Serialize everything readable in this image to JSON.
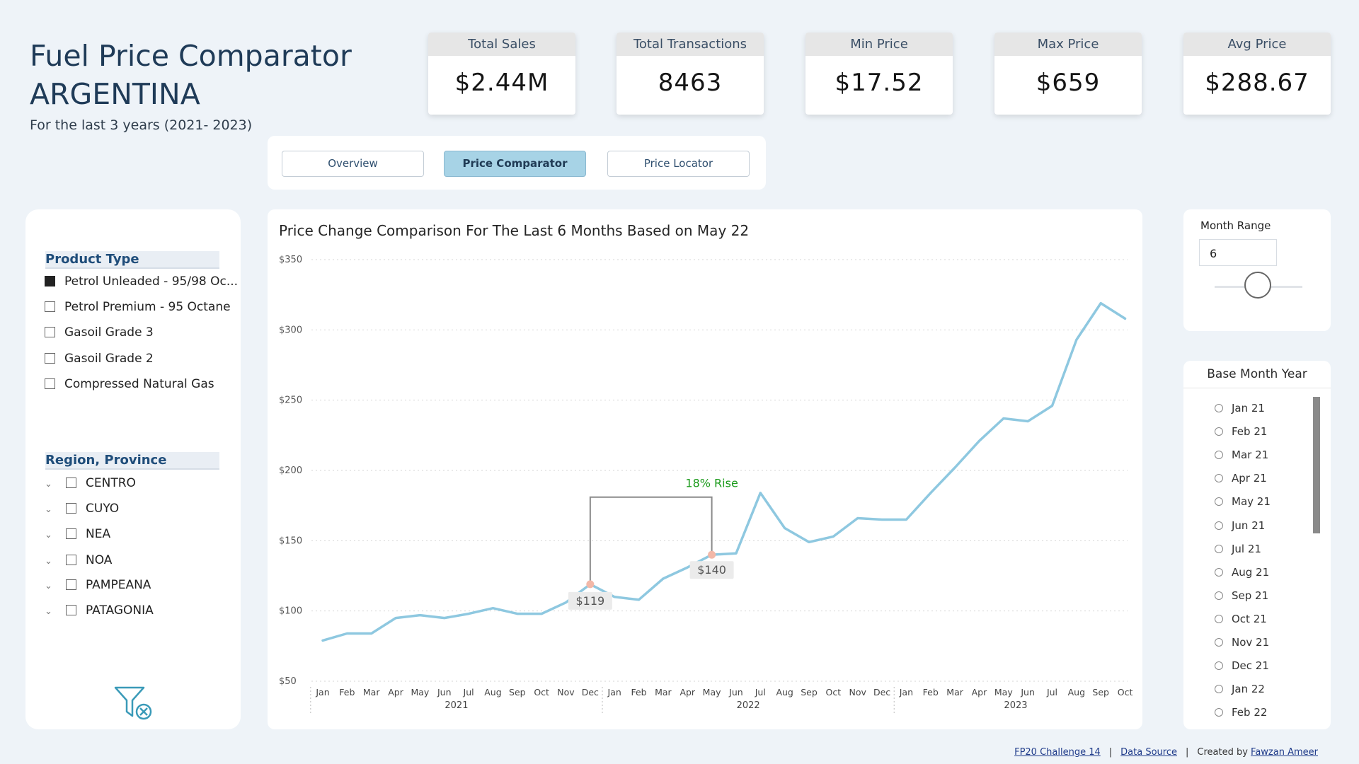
{
  "header": {
    "title_line1": "Fuel Price Comparator",
    "title_line2": "ARGENTINA",
    "subtitle": "For the last 3 years (2021- 2023)"
  },
  "kpis": [
    {
      "label": "Total Sales",
      "value": "$2.44M"
    },
    {
      "label": "Total Transactions",
      "value": "8463"
    },
    {
      "label": "Min Price",
      "value": "$17.52"
    },
    {
      "label": "Max Price",
      "value": "$659"
    },
    {
      "label": "Avg Price",
      "value": "$288.67"
    }
  ],
  "nav": {
    "tabs": [
      {
        "label": "Overview",
        "active": false
      },
      {
        "label": "Price Comparator",
        "active": true
      },
      {
        "label": "Price Locator",
        "active": false
      }
    ]
  },
  "filters": {
    "product_type": {
      "title": "Product Type",
      "items": [
        {
          "label": "Petrol Unleaded - 95/98 Oc...",
          "checked": true
        },
        {
          "label": "Petrol Premium - 95 Octane",
          "checked": false
        },
        {
          "label": "Gasoil Grade 3",
          "checked": false
        },
        {
          "label": "Gasoil Grade 2",
          "checked": false
        },
        {
          "label": "Compressed Natural Gas",
          "checked": false
        }
      ]
    },
    "region": {
      "title": "Region, Province",
      "items": [
        "CENTRO",
        "CUYO",
        "NEA",
        "NOA",
        "PAMPEANA",
        "PATAGONIA"
      ]
    },
    "clear_icon": "clear-filter-icon"
  },
  "month_range": {
    "label": "Month Range",
    "value": "6",
    "slider_value": 6
  },
  "base_month": {
    "title": "Base Month Year",
    "options": [
      "Jan 21",
      "Feb 21",
      "Mar 21",
      "Apr 21",
      "May 21",
      "Jun 21",
      "Jul 21",
      "Aug 21",
      "Sep 21",
      "Oct 21",
      "Nov 21",
      "Dec 21",
      "Jan 22",
      "Feb 22"
    ]
  },
  "footer": {
    "link1": "FP20 Challenge 14",
    "link2": "Data Source",
    "created_prefix": "Created by",
    "author": "Fawzan Ameer"
  },
  "chart_data": {
    "type": "line",
    "title": "Price Change Comparison For The Last 6 Months Based on May 22",
    "xlabel": "",
    "ylabel": "",
    "ylim": [
      50,
      350
    ],
    "yticks": [
      50,
      100,
      150,
      200,
      250,
      300,
      350
    ],
    "ytick_labels": [
      "$50",
      "$100",
      "$150",
      "$200",
      "$250",
      "$300",
      "$350"
    ],
    "grid": true,
    "line_color": "#8ec8e0",
    "x": [
      "Jan",
      "Feb",
      "Mar",
      "Apr",
      "May",
      "Jun",
      "Jul",
      "Aug",
      "Sep",
      "Oct",
      "Nov",
      "Dec",
      "Jan",
      "Feb",
      "Mar",
      "Apr",
      "May",
      "Jun",
      "Jul",
      "Aug",
      "Sep",
      "Oct",
      "Nov",
      "Dec",
      "Jan",
      "Feb",
      "Mar",
      "Apr",
      "May",
      "Jun",
      "Jul",
      "Aug",
      "Sep",
      "Oct"
    ],
    "years": [
      {
        "label": "2021",
        "start": 0,
        "end": 11
      },
      {
        "label": "2022",
        "start": 12,
        "end": 23
      },
      {
        "label": "2023",
        "start": 24,
        "end": 33
      }
    ],
    "values": [
      79,
      84,
      84,
      95,
      97,
      95,
      98,
      102,
      98,
      98,
      106,
      119,
      110,
      108,
      123,
      131,
      140,
      141,
      184,
      159,
      149,
      153,
      166,
      165,
      165,
      184,
      202,
      221,
      237,
      235,
      246,
      293,
      319,
      308
    ],
    "annotation": {
      "start_index": 11,
      "end_index": 16,
      "start_label": "$119",
      "end_label": "$140",
      "bracket_value": 181,
      "text": "18% Rise",
      "text_color": "#1a9a1a",
      "marker_color": "#f2b8a8"
    }
  }
}
